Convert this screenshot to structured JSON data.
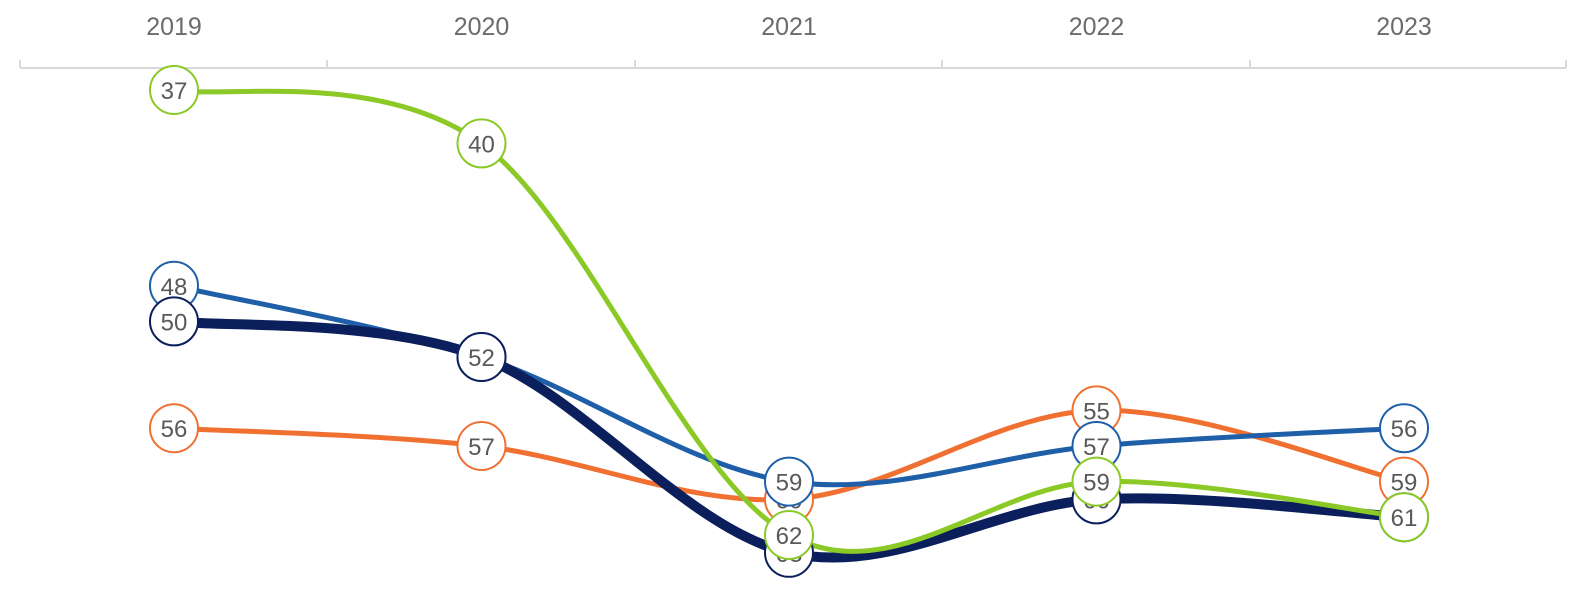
{
  "chart_data": {
    "type": "line",
    "title": "",
    "xlabel": "",
    "ylabel": "",
    "categories": [
      "2019",
      "2020",
      "2021",
      "2022",
      "2023"
    ],
    "x_axis_position": "top",
    "y_axis": "inverted (rank), not shown",
    "ylim": [
      35,
      64
    ],
    "grid": false,
    "legend": "none",
    "smooth": true,
    "series": [
      {
        "color": "#8ac926",
        "values": [
          37,
          40,
          62,
          59,
          61
        ],
        "labels": [
          "37",
          "40",
          "62",
          "59",
          "61"
        ]
      },
      {
        "color": "#f07032",
        "values": [
          56,
          57,
          60,
          55,
          59
        ],
        "labels": [
          "56",
          "57",
          "60",
          "55",
          "59"
        ]
      },
      {
        "color": "#1f5fa8",
        "values": [
          48,
          52,
          59,
          57,
          56
        ],
        "labels": [
          "48",
          "52",
          "59",
          "57",
          "56"
        ]
      },
      {
        "color": "#0b1f5c",
        "values": [
          50,
          52,
          63,
          60,
          61
        ],
        "labels": [
          "50",
          "52",
          "63",
          "60",
          "61"
        ]
      }
    ]
  }
}
